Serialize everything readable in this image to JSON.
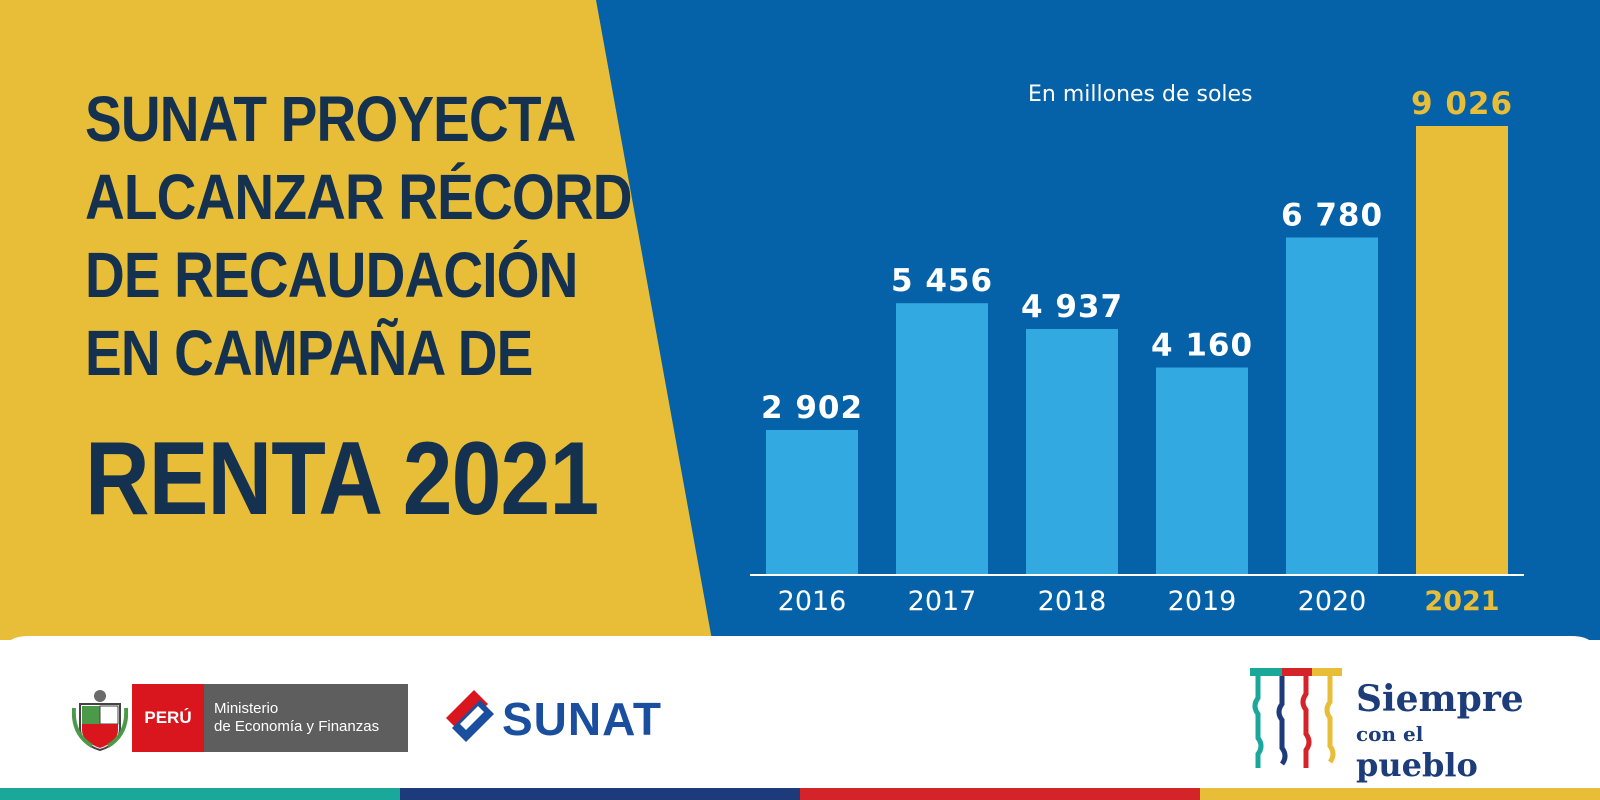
{
  "headline": {
    "line1": "SUNAT PROYECTA",
    "line2": "ALCANZAR RÉCORD",
    "line3": "DE RECAUDACIÓN",
    "line4": "EN CAMPAÑA DE",
    "line5": "RENTA 2021"
  },
  "chart_data": {
    "type": "bar",
    "subtitle": "En millones de soles",
    "categories": [
      "2016",
      "2017",
      "2018",
      "2019",
      "2020",
      "2021"
    ],
    "values": [
      2902,
      5456,
      4937,
      4160,
      6780,
      9026
    ],
    "value_labels": [
      "2 902",
      "5 456",
      "4 937",
      "4 160",
      "6 780",
      "9 026"
    ],
    "highlight_category": "2021",
    "ylim": [
      0,
      9026
    ],
    "grid": false,
    "colors": {
      "bar": "#33a9e1",
      "highlight": "#e8bd38",
      "background": "#0561a8"
    }
  },
  "footer": {
    "peru_label": "PERÚ",
    "ministry_line1": "Ministerio",
    "ministry_line2": "de Economía y Finanzas",
    "sunat_label": "SUNAT",
    "slogan_line1": "Siempre",
    "slogan_line2a": "con el",
    "slogan_line2b": "pueblo"
  },
  "colors": {
    "yellow": "#e8bd38",
    "navy_text": "#14324f",
    "blue": "#0561a8",
    "strip": [
      "#1aa89a",
      "#1d3a7a",
      "#d5232a",
      "#e8bd38"
    ]
  }
}
